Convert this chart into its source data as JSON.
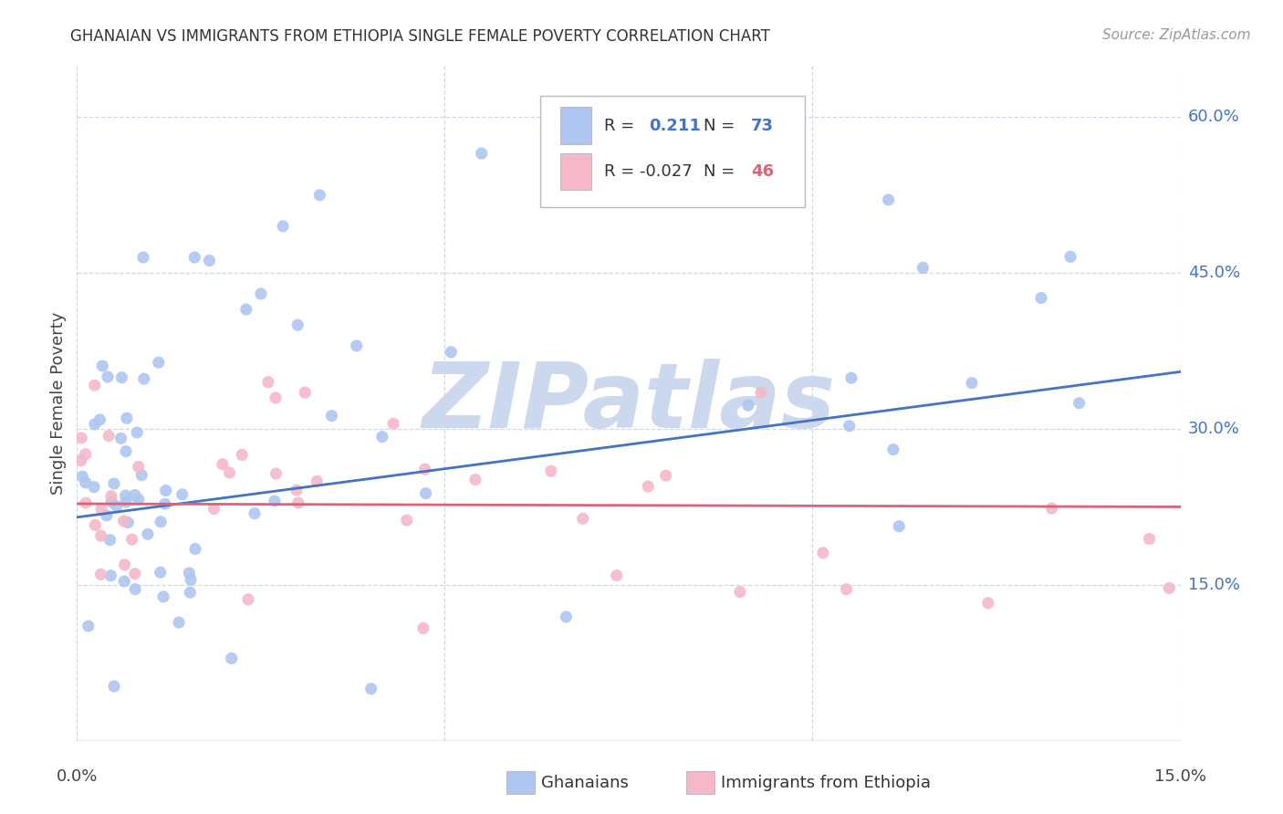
{
  "title": "GHANAIAN VS IMMIGRANTS FROM ETHIOPIA SINGLE FEMALE POVERTY CORRELATION CHART",
  "source": "Source: ZipAtlas.com",
  "ylabel": "Single Female Poverty",
  "r1": 0.211,
  "n1": 73,
  "r2": -0.027,
  "n2": 46,
  "ghanaian_color": "#aec6f0",
  "ethiopia_color": "#f4b8c8",
  "line1_color": "#4472c4",
  "line2_color": "#d9647a",
  "watermark_color": "#ccd8ee",
  "background_color": "#ffffff",
  "xmin": 0.0,
  "xmax": 0.15,
  "ymin": 0.0,
  "ymax": 0.65,
  "ytick_vals": [
    0.15,
    0.3,
    0.45,
    0.6
  ],
  "ytick_labels": [
    "15.0%",
    "30.0%",
    "45.0%",
    "60.0%"
  ],
  "xtick_vals": [
    0.0,
    0.05,
    0.1,
    0.15
  ],
  "grid_color": "#d0d8e8",
  "title_fontsize": 12,
  "label_fontsize": 13,
  "source_fontsize": 11
}
